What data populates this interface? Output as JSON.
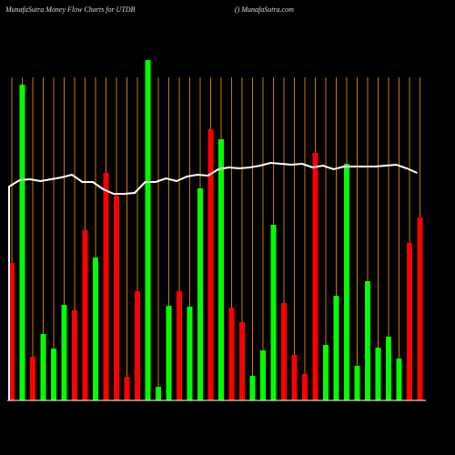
{
  "chart_data": {
    "type": "bar",
    "title": "MunafaSutra  Money Flow  Charts for UTDB",
    "subtitle": "() MunafaSutra.com",
    "categories": [
      null,
      null,
      null,
      null,
      null,
      null,
      null,
      null,
      null,
      null,
      null,
      null,
      null,
      null,
      null,
      null,
      null,
      null,
      null,
      null,
      null,
      null,
      null,
      null,
      null,
      null,
      null,
      null,
      null,
      null,
      null,
      null,
      null,
      null,
      null,
      null,
      null,
      null,
      null,
      null
    ],
    "values": [
      151,
      347,
      48,
      73,
      57,
      105,
      99,
      187,
      157,
      250,
      225,
      26,
      120,
      374,
      15,
      104,
      120,
      103,
      233,
      298,
      287,
      102,
      86,
      27,
      55,
      193,
      107,
      50,
      29,
      272,
      61,
      115,
      260,
      38,
      131,
      58,
      70,
      46,
      173,
      201
    ],
    "colors": [
      "#ff0000",
      "#00ff00",
      "#ff0000",
      "#00ff00",
      "#00ff00",
      "#00ff00",
      "#ff0000",
      "#ff0000",
      "#00ff00",
      "#ff0000",
      "#ff0000",
      "#ff0000",
      "#ff0000",
      "#00ff00",
      "#00ff00",
      "#00ff00",
      "#ff0000",
      "#00ff00",
      "#00ff00",
      "#ff0000",
      "#00ff00",
      "#ff0000",
      "#ff0000",
      "#00ff00",
      "#00ff00",
      "#00ff00",
      "#ff0000",
      "#ff0000",
      "#ff0000",
      "#ff0000",
      "#00ff00",
      "#00ff00",
      "#00ff00",
      "#00ff00",
      "#00ff00",
      "#00ff00",
      "#00ff00",
      "#00ff00",
      "#ff0000",
      "#ff0000"
    ],
    "line_values": [
      235,
      242,
      243,
      241,
      243,
      245,
      248,
      240,
      240,
      232,
      227,
      227,
      228,
      240,
      240,
      244,
      241,
      246,
      248,
      247,
      254,
      256,
      255,
      256,
      258,
      261,
      260,
      259,
      260,
      256,
      258,
      254,
      257,
      257,
      257,
      257,
      258,
      259,
      255,
      250
    ],
    "line_color": "#ffffff",
    "grid_color": "#cc7a00",
    "ylim": [
      0,
      375
    ]
  }
}
